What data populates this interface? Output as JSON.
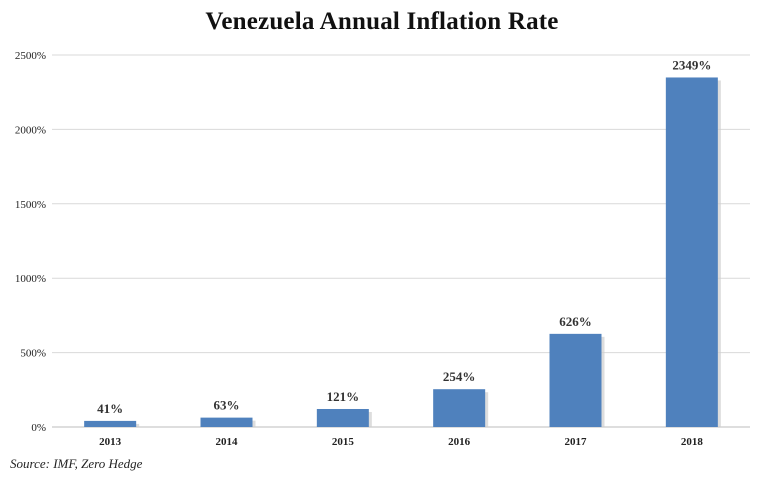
{
  "chart_data": {
    "type": "bar",
    "title": "Venezuela Annual Inflation Rate",
    "xlabel": "",
    "ylabel": "",
    "categories": [
      "2013",
      "2014",
      "2015",
      "2016",
      "2017",
      "2018"
    ],
    "values": [
      41,
      63,
      121,
      254,
      626,
      2349
    ],
    "data_labels": [
      "41%",
      "63%",
      "121%",
      "254%",
      "626%",
      "2349%"
    ],
    "yticks": [
      0,
      500,
      1000,
      1500,
      2000,
      2500
    ],
    "ytick_labels": [
      "0%",
      "500%",
      "1000%",
      "1500%",
      "2000%",
      "2500%"
    ],
    "ylim": [
      0,
      2500
    ],
    "grid": true,
    "legend": "none",
    "bar_color": "#4f81bd",
    "source": "Source: IMF, Zero Hedge"
  }
}
